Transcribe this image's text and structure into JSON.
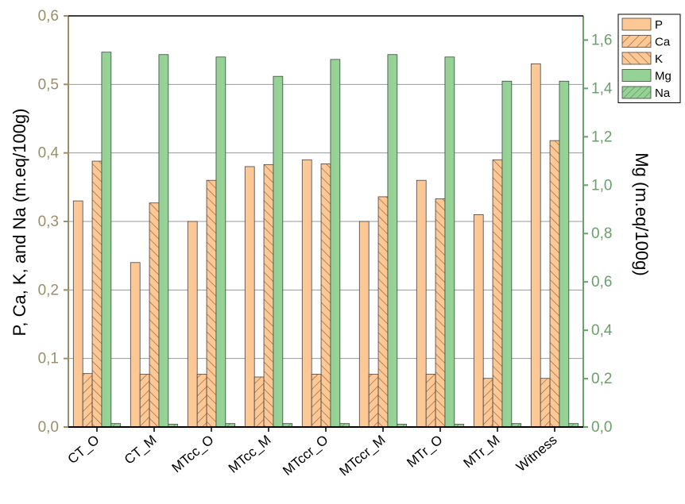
{
  "chart_data": {
    "type": "bar",
    "categories": [
      "CT_O",
      "CT_M",
      "MTcc_O",
      "MTcc_M",
      "MTccr_O",
      "MTccr_M",
      "MTr_O",
      "MTr_M",
      "Witness"
    ],
    "series": [
      {
        "name": "P",
        "axis": "left",
        "values": [
          0.33,
          0.24,
          0.3,
          0.38,
          0.39,
          0.3,
          0.36,
          0.31,
          0.53
        ]
      },
      {
        "name": "Ca",
        "axis": "left",
        "values": [
          0.078,
          0.077,
          0.077,
          0.073,
          0.077,
          0.077,
          0.077,
          0.071,
          0.071
        ]
      },
      {
        "name": "K",
        "axis": "left",
        "values": [
          0.388,
          0.327,
          0.36,
          0.383,
          0.384,
          0.336,
          0.333,
          0.39,
          0.418
        ]
      },
      {
        "name": "Mg",
        "axis": "right",
        "values": [
          1.55,
          1.54,
          1.53,
          1.45,
          1.52,
          1.54,
          1.53,
          1.43,
          1.43
        ]
      },
      {
        "name": "Na",
        "axis": "left",
        "values": [
          0.005,
          0.004,
          0.005,
          0.005,
          0.005,
          0.004,
          0.004,
          0.005,
          0.005
        ]
      }
    ],
    "ylabel": "P, Ca, K, and Na (m.eq/100g)",
    "y2label": "Mg (m.eq/100g)",
    "ylim": [
      0,
      0.6
    ],
    "y2lim": [
      0,
      1.7
    ],
    "yticks": [
      "0,0",
      "0,1",
      "0,2",
      "0,3",
      "0,4",
      "0,5",
      "0,6"
    ],
    "y2ticks": [
      "0,0",
      "0,2",
      "0,4",
      "0,6",
      "0,8",
      "1,0",
      "1,2",
      "1,4",
      "1,6"
    ],
    "grid": true,
    "legend": "top-right",
    "colors": {
      "P": "#fcc896",
      "Ca": "#fcc896",
      "K": "#fcc896",
      "Mg": "#96d296",
      "Na": "#96d296",
      "left_axis": "#9b8f6a",
      "right_axis": "#6aa06a",
      "hatch_orange": "#a0522d",
      "hatch_green": "#3d7a3d"
    }
  }
}
